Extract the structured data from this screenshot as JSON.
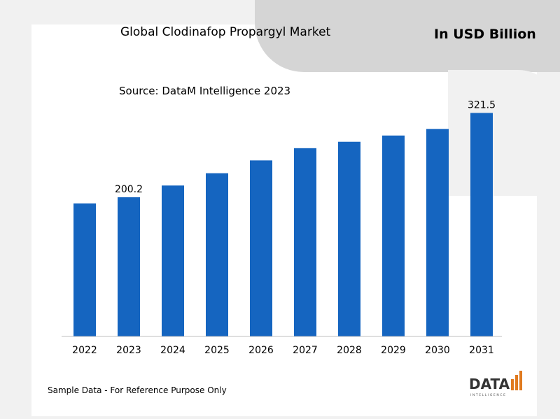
{
  "header": {
    "title": "Global Clodinafop Propargyl Market",
    "unit": "In USD Billion",
    "source": "Source: DataM Intelligence 2023"
  },
  "footer": {
    "note": "Sample Data - For Reference Purpose Only",
    "logo_main": "DATA",
    "logo_sub": "INTELLIGENCE"
  },
  "chart_data": {
    "type": "bar",
    "title": "Global Clodinafop Propargyl Market",
    "ylabel": "",
    "xlabel": "",
    "categories": [
      "2022",
      "2023",
      "2024",
      "2025",
      "2026",
      "2027",
      "2028",
      "2029",
      "2030",
      "2031"
    ],
    "values": [
      191.4,
      200.2,
      217.1,
      234.8,
      253.2,
      270.8,
      280.0,
      289.0,
      298.5,
      321.5
    ],
    "data_labels": {
      "1": "200.2",
      "9": "321.5"
    },
    "ylim": [
      0,
      330
    ],
    "grid": false,
    "legend": "none",
    "bar_color": "#1565c0"
  },
  "colors": {
    "bar": "#1565c0",
    "header_band": "#d5d5d5",
    "background": "#f1f1f1"
  }
}
